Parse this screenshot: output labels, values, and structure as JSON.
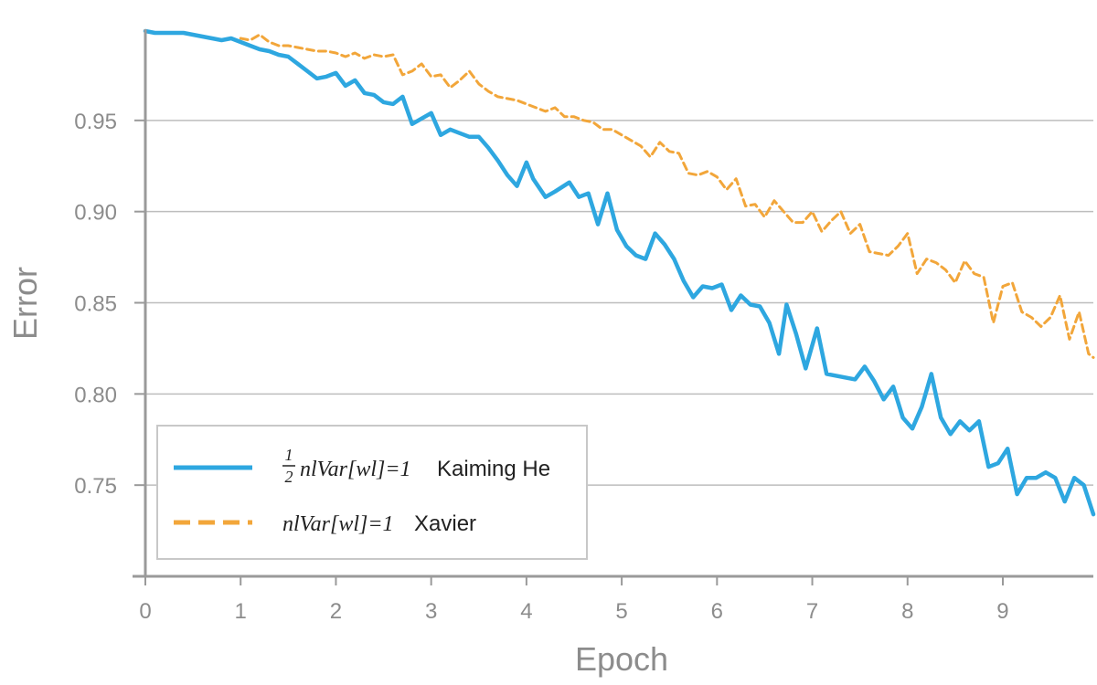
{
  "chart_data": {
    "type": "line",
    "title": "",
    "xlabel": "Epoch",
    "ylabel": "Error",
    "xlim": [
      0,
      9.95
    ],
    "ylim": [
      0.7,
      1.0
    ],
    "xticks": [
      "0",
      "1",
      "2",
      "3",
      "4",
      "5",
      "6",
      "7",
      "8",
      "9"
    ],
    "yticks": [
      "0.75",
      "0.80",
      "0.85",
      "0.90",
      "0.95"
    ],
    "grid": "horizontal",
    "legend_position": "bottom-left",
    "series": [
      {
        "name": "Kaiming He",
        "formula": {
          "frac_num": "1",
          "frac_den": "2",
          "expr": "nlVar[wl]=1"
        },
        "color": "#2ea7e0",
        "style": "solid",
        "x": [
          0.0,
          0.1,
          0.2,
          0.3,
          0.4,
          0.5,
          0.6,
          0.7,
          0.8,
          0.9,
          1.0,
          1.1,
          1.2,
          1.3,
          1.4,
          1.5,
          1.6,
          1.7,
          1.8,
          1.9,
          2.0,
          2.1,
          2.2,
          2.3,
          2.4,
          2.5,
          2.6,
          2.7,
          2.8,
          2.9,
          3.0,
          3.1,
          3.2,
          3.3,
          3.4,
          3.5,
          3.6,
          3.7,
          3.8,
          3.9,
          4.0,
          4.07,
          4.2,
          4.3,
          4.45,
          4.55,
          4.65,
          4.75,
          4.85,
          4.95,
          5.05,
          5.15,
          5.25,
          5.35,
          5.45,
          5.55,
          5.65,
          5.75,
          5.85,
          5.95,
          6.05,
          6.15,
          6.25,
          6.35,
          6.45,
          6.55,
          6.65,
          6.73,
          6.83,
          6.93,
          7.05,
          7.15,
          7.25,
          7.35,
          7.45,
          7.55,
          7.65,
          7.75,
          7.85,
          7.95,
          8.05,
          8.15,
          8.25,
          8.35,
          8.45,
          8.55,
          8.65,
          8.75,
          8.85,
          8.95,
          9.05,
          9.15,
          9.25,
          9.35,
          9.45,
          9.55,
          9.65,
          9.75,
          9.85,
          9.95
        ],
        "y": [
          0.999,
          0.998,
          0.998,
          0.998,
          0.998,
          0.997,
          0.996,
          0.995,
          0.994,
          0.995,
          0.993,
          0.991,
          0.989,
          0.988,
          0.986,
          0.985,
          0.981,
          0.977,
          0.973,
          0.974,
          0.976,
          0.969,
          0.972,
          0.965,
          0.964,
          0.96,
          0.959,
          0.963,
          0.948,
          0.951,
          0.954,
          0.942,
          0.945,
          0.943,
          0.941,
          0.941,
          0.935,
          0.928,
          0.92,
          0.914,
          0.927,
          0.918,
          0.908,
          0.911,
          0.916,
          0.908,
          0.91,
          0.893,
          0.91,
          0.89,
          0.881,
          0.876,
          0.874,
          0.888,
          0.882,
          0.874,
          0.862,
          0.853,
          0.859,
          0.858,
          0.86,
          0.846,
          0.854,
          0.849,
          0.848,
          0.839,
          0.822,
          0.849,
          0.833,
          0.814,
          0.836,
          0.811,
          0.81,
          0.809,
          0.808,
          0.815,
          0.807,
          0.797,
          0.804,
          0.787,
          0.781,
          0.793,
          0.811,
          0.787,
          0.778,
          0.785,
          0.78,
          0.785,
          0.76,
          0.762,
          0.77,
          0.745,
          0.754,
          0.754,
          0.757,
          0.754,
          0.741,
          0.754,
          0.75,
          0.734
        ]
      },
      {
        "name": "Xavier",
        "formula": {
          "expr": "nlVar[wl]=1"
        },
        "color": "#f2a63a",
        "style": "dashed",
        "x": [
          1.0,
          1.1,
          1.2,
          1.3,
          1.4,
          1.5,
          1.6,
          1.7,
          1.8,
          1.9,
          2.0,
          2.1,
          2.2,
          2.3,
          2.4,
          2.5,
          2.6,
          2.7,
          2.8,
          2.9,
          3.0,
          3.1,
          3.2,
          3.3,
          3.4,
          3.5,
          3.6,
          3.7,
          3.8,
          3.9,
          4.0,
          4.1,
          4.2,
          4.3,
          4.4,
          4.5,
          4.6,
          4.7,
          4.8,
          4.9,
          5.0,
          5.1,
          5.2,
          5.3,
          5.4,
          5.5,
          5.6,
          5.7,
          5.8,
          5.9,
          6.0,
          6.1,
          6.2,
          6.3,
          6.4,
          6.5,
          6.6,
          6.7,
          6.8,
          6.9,
          7.0,
          7.1,
          7.2,
          7.3,
          7.4,
          7.5,
          7.6,
          7.7,
          7.8,
          7.9,
          8.0,
          8.1,
          8.2,
          8.3,
          8.4,
          8.5,
          8.6,
          8.7,
          8.8,
          8.9,
          9.0,
          9.1,
          9.2,
          9.3,
          9.4,
          9.5,
          9.6,
          9.7,
          9.8,
          9.9,
          9.95
        ],
        "y": [
          0.995,
          0.994,
          0.997,
          0.993,
          0.991,
          0.991,
          0.99,
          0.989,
          0.988,
          0.988,
          0.987,
          0.985,
          0.987,
          0.984,
          0.986,
          0.985,
          0.986,
          0.975,
          0.977,
          0.981,
          0.974,
          0.975,
          0.968,
          0.972,
          0.977,
          0.97,
          0.966,
          0.963,
          0.962,
          0.961,
          0.959,
          0.957,
          0.955,
          0.957,
          0.952,
          0.952,
          0.95,
          0.949,
          0.945,
          0.945,
          0.942,
          0.939,
          0.936,
          0.93,
          0.938,
          0.933,
          0.932,
          0.921,
          0.92,
          0.922,
          0.919,
          0.912,
          0.918,
          0.903,
          0.904,
          0.897,
          0.906,
          0.9,
          0.894,
          0.894,
          0.9,
          0.889,
          0.895,
          0.9,
          0.888,
          0.893,
          0.878,
          0.877,
          0.876,
          0.881,
          0.888,
          0.866,
          0.874,
          0.872,
          0.868,
          0.861,
          0.873,
          0.866,
          0.864,
          0.839,
          0.859,
          0.861,
          0.845,
          0.842,
          0.837,
          0.842,
          0.854,
          0.83,
          0.845,
          0.822,
          0.82
        ]
      }
    ]
  }
}
